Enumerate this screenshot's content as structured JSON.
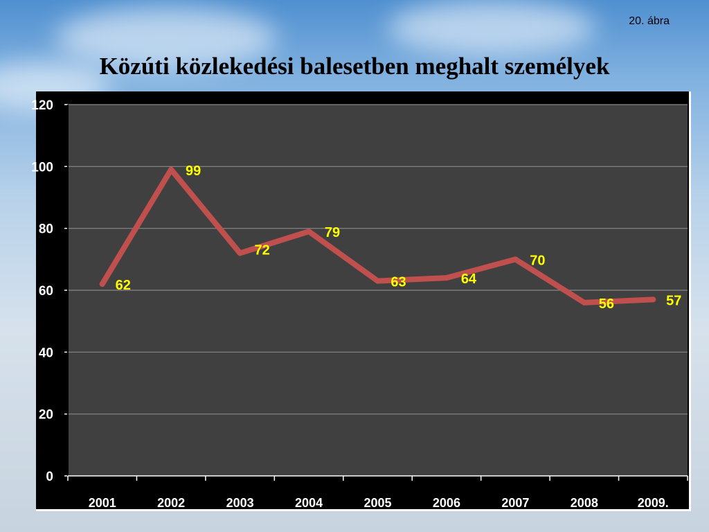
{
  "figure_label": "20. ábra",
  "title": "Közúti közlekedési balesetben meghalt személyek",
  "chart_data": {
    "type": "line",
    "categories": [
      "2001",
      "2002",
      "2003",
      "2004",
      "2005",
      "2006",
      "2007",
      "2008",
      "2009."
    ],
    "series": [
      {
        "values": [
          62,
          99,
          72,
          79,
          63,
          64,
          70,
          56,
          57
        ]
      }
    ],
    "data_labels": [
      "62",
      "99",
      "72",
      "79",
      "63",
      "64",
      "70",
      "56",
      "57"
    ],
    "y_ticks": [
      0,
      20,
      40,
      60,
      80,
      100,
      120
    ],
    "y_tick_labels": [
      "0",
      "20",
      "40",
      "60",
      "80",
      "100",
      "120"
    ],
    "ylim": [
      0,
      120
    ],
    "xlabel": "",
    "ylabel": "",
    "grid": true,
    "legend": false,
    "colors": {
      "line": "#c0504d",
      "plot_background": "#404040",
      "frame": "#000000",
      "gridline": "#8a8a8a",
      "data_label": "#ffff00",
      "tick_label": "#ffffff"
    }
  }
}
